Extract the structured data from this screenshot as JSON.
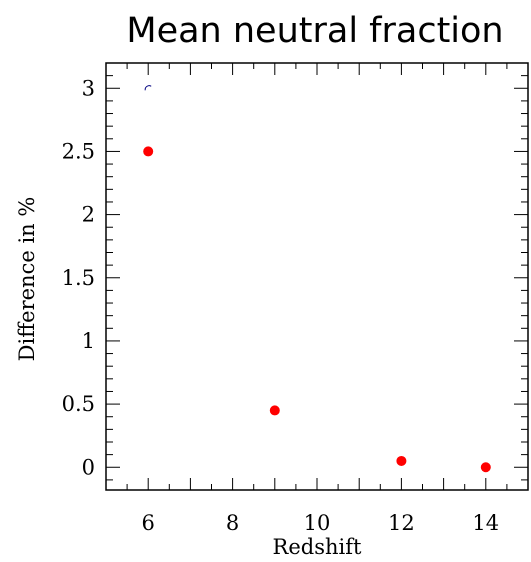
{
  "chart_data": {
    "type": "scatter",
    "title": "Mean neutral fraction",
    "xlabel": "Redshift",
    "ylabel": "Difference in %",
    "xlim": [
      5,
      15
    ],
    "ylim": [
      -0.18,
      3.2
    ],
    "x_ticks": [
      "6",
      "8",
      "10",
      "12",
      "14"
    ],
    "y_ticks": [
      "0",
      "0.5",
      "1",
      "1.5",
      "2",
      "2.5",
      "3"
    ],
    "grid": false,
    "series": [
      {
        "color": "#ff0000",
        "points": [
          {
            "x": 6,
            "y": 2.5
          },
          {
            "x": 9,
            "y": 0.45
          },
          {
            "x": 12,
            "y": 0.05
          },
          {
            "x": 14,
            "y": 0.0
          }
        ]
      }
    ],
    "annotations": [
      {
        "type": "small-arc",
        "x": 6,
        "y": 3.0,
        "color": "#000080"
      }
    ]
  }
}
